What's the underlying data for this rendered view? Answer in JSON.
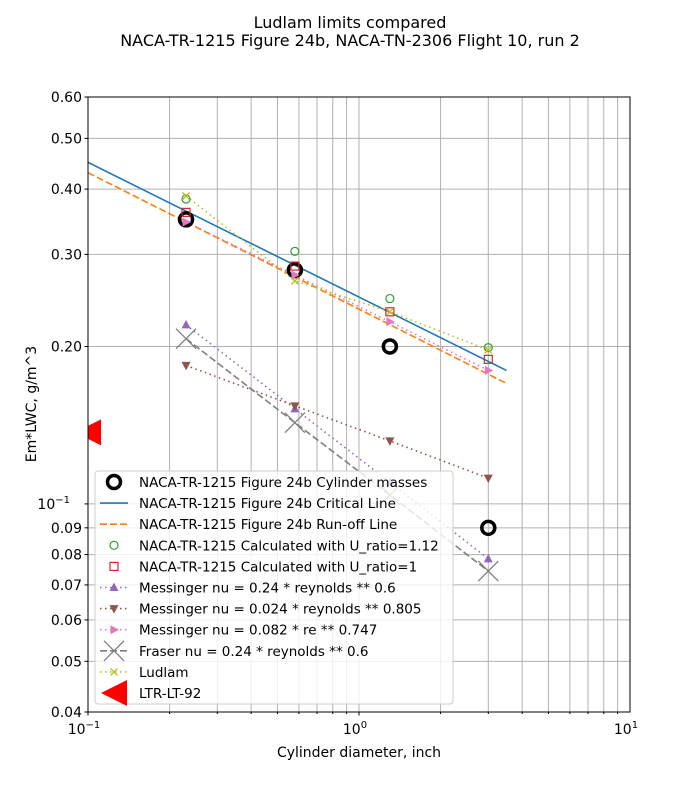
{
  "chart_data": {
    "type": "line",
    "title": "Ludlam limits compared",
    "subtitle": "NACA-TR-1215 Figure 24b, NACA-TN-2306 Flight 10, run 2",
    "xlabel": "Cylinder diameter, inch",
    "ylabel": "Em*LWC, g/m^3",
    "xscale": "log",
    "yscale": "log",
    "xlim": [
      0.1,
      10
    ],
    "ylim": [
      0.04,
      0.6
    ],
    "grid": true,
    "legend_placement": "lower-left",
    "x_ticks": [
      {
        "v": 0.1,
        "label": "10",
        "exp": "−1"
      },
      {
        "v": 1,
        "label": "10",
        "exp": "0"
      },
      {
        "v": 10,
        "label": "10",
        "exp": "1"
      }
    ],
    "y_ticks": [
      {
        "v": 0.6,
        "label": "0.60"
      },
      {
        "v": 0.5,
        "label": "0.50"
      },
      {
        "v": 0.4,
        "label": "0.40"
      },
      {
        "v": 0.3,
        "label": "0.30"
      },
      {
        "v": 0.2,
        "label": "0.20"
      },
      {
        "v": 0.1,
        "label": "10",
        "exp": "−1"
      },
      {
        "v": 0.09,
        "label": "0.09"
      },
      {
        "v": 0.08,
        "label": "0.08"
      },
      {
        "v": 0.07,
        "label": "0.07"
      },
      {
        "v": 0.06,
        "label": "0.06"
      },
      {
        "v": 0.05,
        "label": "0.05"
      },
      {
        "v": 0.04,
        "label": "0.04"
      }
    ],
    "series": [
      {
        "name": "NACA-TR-1215 Figure 24b Cylinder masses",
        "color": "#000000",
        "marker": "circle-thick",
        "line": "none",
        "x": [
          0.23,
          0.58,
          1.3,
          3.0
        ],
        "y": [
          0.35,
          0.28,
          0.2,
          0.09
        ]
      },
      {
        "name": "NACA-TR-1215 Figure 24b Critical Line",
        "color": "#1f77b4",
        "marker": "none",
        "line": "solid",
        "x": [
          0.1,
          3.5
        ],
        "y": [
          0.45,
          0.18
        ]
      },
      {
        "name": "NACA-TR-1215 Figure 24b Run-off Line",
        "color": "#ff7f0e",
        "marker": "none",
        "line": "dashed",
        "x": [
          0.1,
          3.5
        ],
        "y": [
          0.43,
          0.17
        ]
      },
      {
        "name": "NACA-TR-1215 Calculated with U_ratio=1.12",
        "color": "#2ca02c",
        "marker": "circle-open",
        "line": "none",
        "x": [
          0.23,
          0.58,
          1.3,
          3.0
        ],
        "y": [
          0.383,
          0.304,
          0.247,
          0.199
        ]
      },
      {
        "name": "NACA-TR-1215 Calculated with U_ratio=1",
        "color": "#d62728",
        "marker": "square-open",
        "line": "none",
        "x": [
          0.23,
          0.58,
          1.3,
          3.0
        ],
        "y": [
          0.361,
          0.285,
          0.233,
          0.189
        ]
      },
      {
        "name": "Messinger nu = 0.24 * reynolds ** 0.6",
        "color": "#9467bd",
        "marker": "triangle-up",
        "line": "dotted",
        "x": [
          0.23,
          0.58,
          1.3,
          3.0
        ],
        "y": [
          0.22,
          0.152,
          0.11,
          0.0785
        ]
      },
      {
        "name": "Messinger nu = 0.024 * reynolds ** 0.805",
        "color": "#8c564b",
        "marker": "triangle-down",
        "line": "dotted",
        "x": [
          0.23,
          0.58,
          1.3,
          3.0
        ],
        "y": [
          0.184,
          0.154,
          0.132,
          0.112
        ]
      },
      {
        "name": "Messinger nu = 0.082 * re ** 0.747",
        "color": "#e377c2",
        "marker": "triangle-right",
        "line": "dotted",
        "x": [
          0.23,
          0.58,
          1.3,
          3.0
        ],
        "y": [
          0.346,
          0.274,
          0.223,
          0.18
        ]
      },
      {
        "name": "Fraser nu = 0.24 * reynolds ** 0.6",
        "color": "#7f7f7f",
        "marker": "x-large",
        "line": "dashed",
        "x": [
          0.23,
          0.58,
          1.3,
          3.0
        ],
        "y": [
          0.207,
          0.143,
          0.104,
          0.0744
        ]
      },
      {
        "name": "Ludlam",
        "color": "#bcbd22",
        "marker": "x-small",
        "line": "dotted",
        "x": [
          0.23,
          0.58,
          1.3,
          3.0
        ],
        "y": [
          0.388,
          0.267,
          0.233,
          0.197
        ]
      },
      {
        "name": "LTR-LT-92",
        "color": "#ff0000",
        "marker": "triangle-left-large",
        "line": "none",
        "x": [
          0.1
        ],
        "y": [
          0.137
        ]
      }
    ]
  }
}
